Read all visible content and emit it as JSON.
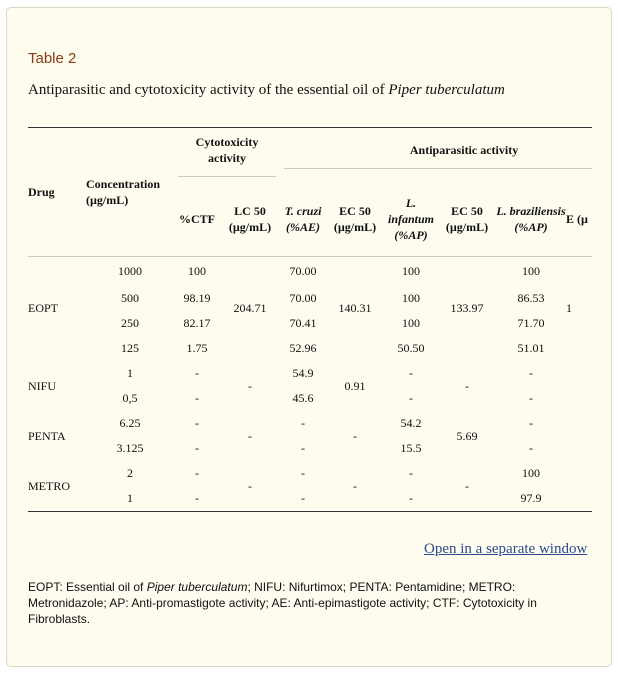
{
  "table_label": "Table 2",
  "caption": {
    "text": "Antiparasitic and cytotoxicity activity of the essential oil of ",
    "species": "Piper tuberculatum"
  },
  "headers": {
    "drug": "Drug",
    "concentration": "Concentration (µg/mL)",
    "cytotoxicity": "Cytotoxicity activity",
    "antiparasitic": "Antiparasitic activity",
    "ctf": "%CTF",
    "lc50": "LC 50 (µg/mL)",
    "tcruzi": "T. cruzi (%AE)",
    "ec50": "EC 50 (µg/mL)",
    "linfantum": "L. infantum (%AP)",
    "lbraz": "L. braziliensis (%AP)",
    "ec_partial": "E (µ"
  },
  "rows": [
    {
      "drug": "EOPT",
      "conc": "1000",
      "ctf": "100",
      "lc50": "204.71",
      "tc": "70.00",
      "ec1": "140.31",
      "li": "100",
      "ec2": "133.97",
      "lb": "100",
      "ec3": "1"
    },
    {
      "conc": "500",
      "ctf": "98.19",
      "tc": "70.00",
      "li": "100",
      "lb": "86.53"
    },
    {
      "conc": "250",
      "ctf": "82.17",
      "tc": "70.41",
      "li": "100",
      "lb": "71.70"
    },
    {
      "conc": "125",
      "ctf": "1.75",
      "tc": "52.96",
      "li": "50.50",
      "lb": "51.01"
    },
    {
      "drug": "NIFU",
      "conc": "1",
      "ctf": "-",
      "lc50": "-",
      "tc": "54.9",
      "ec1": "0.91",
      "li": "-",
      "ec2": "-",
      "lb": "-"
    },
    {
      "conc": "0,5",
      "ctf": "-",
      "tc": "45.6",
      "li": "-",
      "lb": "-"
    },
    {
      "drug": "PENTA",
      "conc": "6.25",
      "ctf": "-",
      "lc50": "-",
      "tc": "-",
      "ec1": "-",
      "li": "54.2",
      "ec2": "5.69",
      "lb": "-"
    },
    {
      "conc": "3.125",
      "ctf": "-",
      "tc": "-",
      "li": "15.5",
      "lb": "-"
    },
    {
      "drug": "METRO",
      "conc": "2",
      "ctf": "-",
      "lc50": "-",
      "tc": "-",
      "ec1": "-",
      "li": "-",
      "ec2": "-",
      "lb": "100"
    },
    {
      "conc": "1",
      "ctf": "-",
      "tc": "-",
      "li": "-",
      "lb": "97.9"
    }
  ],
  "link_text": "Open in a separate window",
  "footnote": {
    "part1": "EOPT: Essential oil of ",
    "species": "Piper tuberculatum",
    "part2": "; NIFU: Nifurtimox; PENTA: Pentamidine; METRO: Metronidazole; AP: Anti-promastigote activity; AE: Anti-epimastigote activity; CTF: Cytotoxicity in Fibroblasts."
  }
}
